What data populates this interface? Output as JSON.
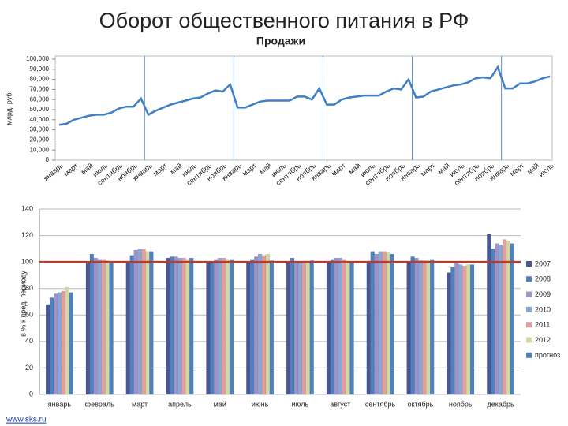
{
  "chart_data": [
    {
      "type": "line",
      "title": "Оборот общественного питания в РФ",
      "subtitle": "Продажи",
      "y_label": "млрд. руб",
      "categories": [
        "январь",
        null,
        "март",
        null,
        "май",
        null,
        "июль",
        null,
        "сентябрь",
        null,
        "ноябрь",
        null,
        "январь",
        null,
        "март",
        null,
        "май",
        null,
        "июль",
        null,
        "сентябрь",
        null,
        "ноябрь",
        null,
        "январь",
        null,
        "март",
        null,
        "май",
        null,
        "июль",
        null,
        "сентябрь",
        null,
        "ноябрь",
        null,
        "январь",
        null,
        "март",
        null,
        "май",
        null,
        "июль",
        null,
        "сентябрь",
        null,
        "ноябрь",
        null,
        "январь",
        null,
        "март",
        null,
        "май",
        null,
        "июль",
        null,
        "сентябрь",
        null,
        "ноябрь",
        null,
        "январь",
        null,
        "март",
        null,
        "май",
        null,
        "июль"
      ],
      "values": [
        35,
        36,
        40,
        42,
        44,
        45,
        45,
        47,
        51,
        53,
        53,
        61,
        45,
        49,
        52,
        55,
        57,
        59,
        61,
        62,
        66,
        69,
        68,
        75,
        52,
        52,
        55,
        58,
        59,
        59,
        59,
        59,
        63,
        63,
        60,
        71,
        55,
        55,
        60,
        62,
        63,
        64,
        64,
        64,
        68,
        71,
        70,
        80,
        62,
        63,
        68,
        70,
        72,
        74,
        75,
        77,
        81,
        82,
        81,
        92,
        71,
        71,
        76,
        76,
        78,
        81,
        83
      ],
      "color": "#3f7fc4",
      "ylim": [
        0,
        100
      ],
      "yticks": [
        0,
        {
          "value": 10,
          "label": "10,000"
        },
        {
          "value": 20,
          "label": "20,000"
        },
        {
          "value": 30,
          "label": "30,000"
        },
        {
          "value": 40,
          "label": "40,000"
        },
        {
          "value": 50,
          "label": "50,000"
        },
        {
          "value": 60,
          "label": "60,000"
        },
        {
          "value": 70,
          "label": "70,000"
        },
        {
          "value": 80,
          "label": "80,000"
        },
        {
          "value": 90,
          "label": "90,000"
        },
        {
          "value": 100,
          "label": "100,000"
        }
      ]
    },
    {
      "type": "bar",
      "y_label": "в % к пред. периоду",
      "categories": [
        "январь",
        "февраль",
        "март",
        "апрель",
        "май",
        "июнь",
        "июль",
        "август",
        "сентябрь",
        "октябрь",
        "ноябрь",
        "декабрь"
      ],
      "series": [
        {
          "name": "2007",
          "color": "#4a5796",
          "values": [
            68,
            99,
            100,
            103,
            100,
            100,
            100,
            100,
            100,
            100,
            92,
            121
          ]
        },
        {
          "name": "2008",
          "color": "#4f81bd",
          "values": [
            73,
            106,
            105,
            104,
            100,
            102,
            103,
            102,
            108,
            104,
            96,
            110
          ]
        },
        {
          "name": "2009",
          "color": "#9d92c9",
          "values": [
            76,
            103,
            109,
            104,
            102,
            104,
            100,
            103,
            106,
            103,
            99,
            114
          ]
        },
        {
          "name": "2010",
          "color": "#8aa7d6",
          "values": [
            77,
            102,
            110,
            103,
            103,
            106,
            100,
            103,
            108,
            101,
            98,
            113
          ]
        },
        {
          "name": "2011",
          "color": "#e59c9c",
          "values": [
            78,
            102,
            110,
            103,
            103,
            105,
            100,
            102,
            108,
            101,
            97,
            117
          ]
        },
        {
          "name": "2012",
          "color": "#cfd9a6",
          "values": [
            81,
            101,
            108,
            102,
            102,
            106,
            99,
            100,
            107,
            101,
            98,
            116
          ]
        },
        {
          "name": "прогноз",
          "color": "#4f81bd",
          "values": [
            77,
            100,
            108,
            103,
            102,
            101,
            101,
            100,
            106,
            102,
            98,
            114
          ]
        }
      ],
      "reference_line": {
        "value": 100,
        "color": "#c0392b"
      },
      "ylim": [
        0,
        140
      ],
      "yticks": [
        0,
        20,
        40,
        60,
        80,
        100,
        120,
        140
      ],
      "grid": true
    }
  ],
  "footer": "www.sks.ru"
}
